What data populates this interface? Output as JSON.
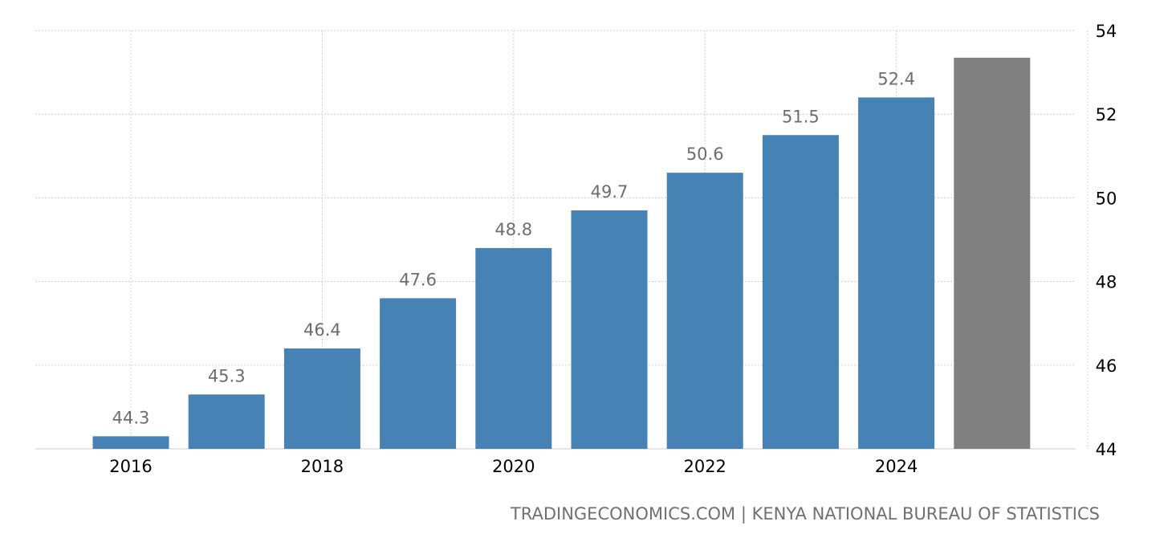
{
  "chart_data": {
    "type": "bar",
    "title": "",
    "xlabel": "",
    "ylabel": "",
    "categories": [
      "2016",
      "2017",
      "2018",
      "2019",
      "2020",
      "2021",
      "2022",
      "2023",
      "2024",
      "2025"
    ],
    "values": [
      44.3,
      45.3,
      46.4,
      47.6,
      48.8,
      49.7,
      50.6,
      51.5,
      52.4,
      53.35
    ],
    "data_labels": [
      "44.3",
      "45.3",
      "46.4",
      "47.6",
      "48.8",
      "49.7",
      "50.6",
      "51.5",
      "52.4",
      ""
    ],
    "forecast_from_index": 9,
    "x_tick_labels": [
      {
        "index": 0,
        "label": "2016"
      },
      {
        "index": 2,
        "label": "2018"
      },
      {
        "index": 4,
        "label": "2020"
      },
      {
        "index": 6,
        "label": "2022"
      },
      {
        "index": 8,
        "label": "2024"
      }
    ],
    "ylim": [
      44,
      54
    ],
    "y_ticks": [
      44,
      46,
      48,
      50,
      52,
      54
    ],
    "y_axis_position": "right",
    "grid": true,
    "colors": {
      "bar": "#4682b4",
      "forecast_bar": "#808080",
      "data_label": "#6d6d6d",
      "grid": "#d0d0d0"
    }
  },
  "source": {
    "text": "TRADINGECONOMICS.COM | KENYA NATIONAL BUREAU OF STATISTICS"
  }
}
